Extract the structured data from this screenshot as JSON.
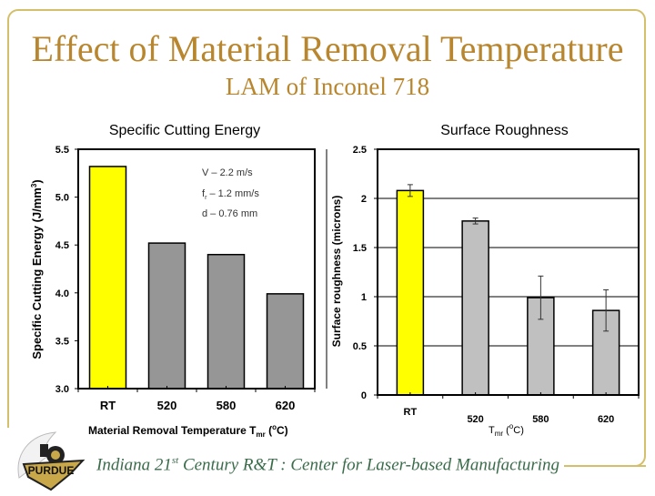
{
  "slide": {
    "title": "Effect of Material Removal Temperature",
    "subtitle": "LAM of Inconel 718",
    "footer_pre": "Indiana 21",
    "footer_sup": "st",
    "footer_post": " Century R&T :  Center for Laser-based Manufacturing",
    "logo_text": "PURDUE",
    "accent_color": "#b8862e",
    "frame_color": "#d4bf6a"
  },
  "chart_data": [
    {
      "type": "bar",
      "title": "Specific Cutting Energy",
      "xlabel": "Material Removal Temperature T_mr (°C)",
      "ylabel": "Specific Cutting Energy (J/mm³)",
      "categories": [
        "RT",
        "520",
        "580",
        "620"
      ],
      "values": [
        5.32,
        4.52,
        4.4,
        3.99
      ],
      "colors": [
        "#ffff00",
        "#969696",
        "#969696",
        "#969696"
      ],
      "ylim": [
        3.0,
        5.5
      ],
      "yticks": [
        "3.0",
        "3.5",
        "4.0",
        "4.5",
        "5.0",
        "5.5"
      ],
      "ytick_values": [
        3.0,
        3.5,
        4.0,
        4.5,
        5.0,
        5.5
      ],
      "grid": false,
      "annotations": [
        "V – 2.2 m/s",
        "fr – 1.2 mm/s",
        "d – 0.76 mm"
      ]
    },
    {
      "type": "bar",
      "title": "Surface Roughness",
      "xlabel": "T_mr (°C)",
      "ylabel": "Surface roughness (microns)",
      "categories": [
        "RT",
        "520",
        "580",
        "620"
      ],
      "values": [
        2.08,
        1.77,
        0.99,
        0.86
      ],
      "errors": [
        0.06,
        0.03,
        0.22,
        0.21
      ],
      "colors": [
        "#ffff00",
        "#c0c0c0",
        "#c0c0c0",
        "#c0c0c0"
      ],
      "ylim": [
        0,
        2.5
      ],
      "yticks": [
        "0",
        "0.5",
        "1",
        "1.5",
        "2",
        "2.5"
      ],
      "ytick_values": [
        0,
        0.5,
        1,
        1.5,
        2,
        2.5
      ],
      "grid": true
    }
  ]
}
